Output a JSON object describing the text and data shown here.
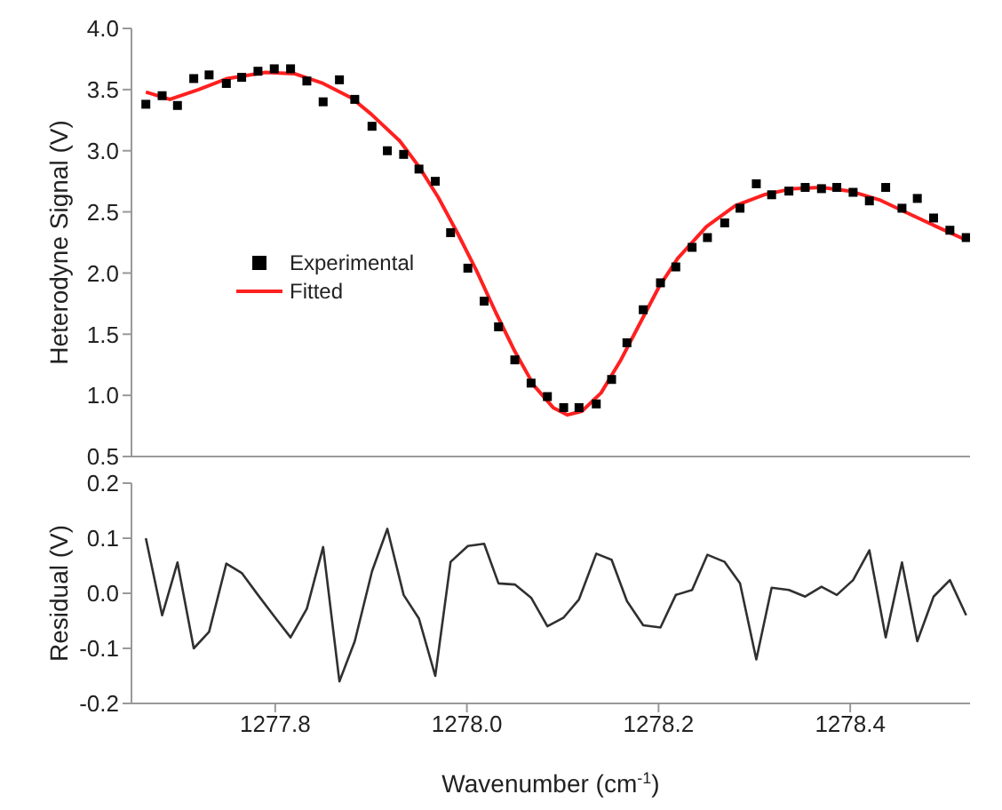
{
  "chart_data": [
    {
      "type": "scatter",
      "ylabel": "Heterodyne Signal (V)",
      "xlim": [
        1277.65,
        1278.525
      ],
      "ylim": [
        0.5,
        4.0
      ],
      "yticks": [
        0.5,
        {
          "value": 1,
          "label": "1.0"
        },
        1.5,
        {
          "value": 2,
          "label": "2.0"
        },
        2.5,
        {
          "value": 3,
          "label": "3.0"
        },
        3.5,
        {
          "value": 4,
          "label": "4.0"
        }
      ],
      "xticks": [
        1277.8,
        1278,
        1278.2,
        1278.4
      ],
      "tick_labels": "y",
      "grid": false,
      "legend": "left",
      "series": [
        {
          "name": "Experimental",
          "marker": "square",
          "color": "#000000",
          "x": [
            1277.665,
            1277.682,
            1277.698,
            1277.715,
            1277.731,
            1277.749,
            1277.765,
            1277.782,
            1277.799,
            1277.816,
            1277.833,
            1277.85,
            1277.867,
            1277.883,
            1277.901,
            1277.917,
            1277.934,
            1277.95,
            1277.967,
            1277.983,
            1278.001,
            1278.018,
            1278.033,
            1278.05,
            1278.067,
            1278.084,
            1278.101,
            1278.117,
            1278.135,
            1278.151,
            1278.167,
            1278.184,
            1278.202,
            1278.218,
            1278.235,
            1278.251,
            1278.269,
            1278.285,
            1278.302,
            1278.318,
            1278.336,
            1278.353,
            1278.37,
            1278.386,
            1278.403,
            1278.42,
            1278.437,
            1278.454,
            1278.47,
            1278.487,
            1278.504,
            1278.521
          ],
          "values": [
            3.38,
            3.45,
            3.37,
            3.59,
            3.62,
            3.55,
            3.6,
            3.65,
            3.67,
            3.67,
            3.57,
            3.4,
            3.58,
            3.42,
            3.2,
            3.0,
            2.97,
            2.85,
            2.75,
            2.33,
            2.04,
            1.77,
            1.56,
            1.29,
            1.1,
            0.99,
            0.9,
            0.9,
            0.93,
            1.13,
            1.43,
            1.7,
            1.92,
            2.05,
            2.21,
            2.29,
            2.41,
            2.53,
            2.73,
            2.64,
            2.67,
            2.7,
            2.69,
            2.7,
            2.66,
            2.59,
            2.7,
            2.53,
            2.61,
            2.45,
            2.35,
            2.29
          ]
        },
        {
          "name": "Fitted",
          "type": "line",
          "marker": "none",
          "line_style": "solid",
          "color": "#ff2020",
          "x": [
            1277.665,
            1277.69,
            1277.72,
            1277.75,
            1277.79,
            1277.82,
            1277.85,
            1277.88,
            1277.9,
            1277.93,
            1277.95,
            1277.97,
            1277.99,
            1278.01,
            1278.03,
            1278.05,
            1278.07,
            1278.09,
            1278.105,
            1278.12,
            1278.14,
            1278.16,
            1278.18,
            1278.2,
            1278.22,
            1278.25,
            1278.28,
            1278.31,
            1278.34,
            1278.37,
            1278.4,
            1278.43,
            1278.46,
            1278.49,
            1278.521
          ],
          "values": [
            3.48,
            3.42,
            3.5,
            3.59,
            3.64,
            3.63,
            3.55,
            3.43,
            3.3,
            3.08,
            2.87,
            2.62,
            2.33,
            2.02,
            1.68,
            1.36,
            1.08,
            0.9,
            0.84,
            0.87,
            1.02,
            1.28,
            1.58,
            1.88,
            2.12,
            2.38,
            2.55,
            2.64,
            2.69,
            2.7,
            2.67,
            2.6,
            2.49,
            2.38,
            2.27
          ]
        }
      ]
    },
    {
      "type": "line",
      "ylabel": "Residual (V)",
      "xlabel": "Wavenumber (cm$^{-1}$)",
      "xlim": [
        1277.65,
        1278.525
      ],
      "xticks": [
        1277.8,
        {
          "value": 1278,
          "label": "1278.0"
        },
        1278.2,
        1278.4
      ],
      "ylim": [
        -0.2,
        0.2
      ],
      "yticks": [
        -0.2,
        -0.1,
        {
          "value": 0,
          "label": "0.0"
        },
        0.1,
        0.2
      ],
      "grid": false,
      "marker": "none",
      "line_style": "solid",
      "x": [
        1277.665,
        1277.682,
        1277.698,
        1277.715,
        1277.731,
        1277.749,
        1277.765,
        1277.782,
        1277.799,
        1277.816,
        1277.833,
        1277.85,
        1277.867,
        1277.883,
        1277.901,
        1277.917,
        1277.934,
        1277.95,
        1277.967,
        1277.983,
        1278.001,
        1278.018,
        1278.033,
        1278.05,
        1278.067,
        1278.084,
        1278.101,
        1278.117,
        1278.135,
        1278.151,
        1278.167,
        1278.184,
        1278.202,
        1278.218,
        1278.235,
        1278.251,
        1278.269,
        1278.285,
        1278.302,
        1278.318,
        1278.336,
        1278.353,
        1278.37,
        1278.386,
        1278.403,
        1278.42,
        1278.437,
        1278.454,
        1278.47,
        1278.487,
        1278.504,
        1278.521
      ],
      "series": [
        {
          "color": "#303030",
          "values": [
            0.1,
            -0.04,
            0.056,
            -0.1,
            -0.07,
            0.054,
            0.037,
            -0.003,
            -0.042,
            -0.08,
            -0.028,
            0.084,
            -0.16,
            -0.087,
            0.04,
            0.117,
            -0.003,
            -0.046,
            -0.15,
            0.057,
            0.086,
            0.09,
            0.018,
            0.016,
            -0.008,
            -0.06,
            -0.044,
            -0.011,
            0.072,
            0.061,
            -0.014,
            -0.058,
            -0.062,
            -0.003,
            0.006,
            0.07,
            0.057,
            0.018,
            -0.12,
            0.01,
            0.006,
            -0.006,
            0.012,
            -0.003,
            0.024,
            0.078,
            -0.08,
            0.056,
            -0.087,
            -0.006,
            0.024,
            -0.04
          ]
        }
      ]
    }
  ]
}
